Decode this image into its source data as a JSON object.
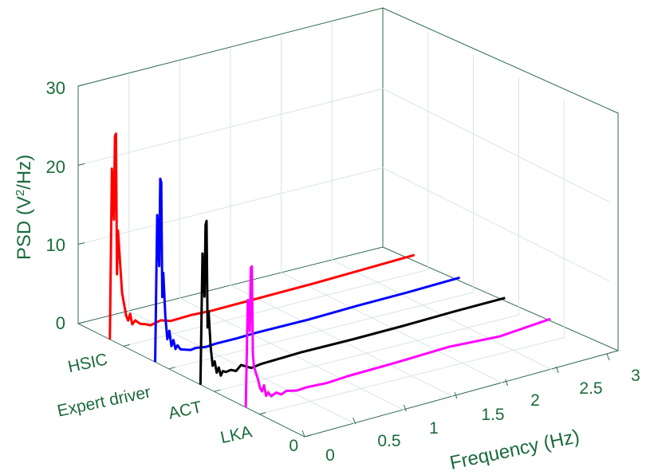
{
  "chart_data": {
    "type": "line-3d-waterfall",
    "title": "",
    "zlabel": "PSD (V²/Hz)",
    "zlabel_parts": {
      "prefix": "PSD (V",
      "sup": "2",
      "suffix": "/Hz)"
    },
    "xlabel": "Frequency (Hz)",
    "ylabel": "",
    "xlim": [
      0,
      3
    ],
    "zlim": [
      0,
      30
    ],
    "x_ticks": [
      "0",
      "0.5",
      "1",
      "1.5",
      "2",
      "2.5",
      "3"
    ],
    "y_ticks": [
      "HSIC",
      "Expert driver",
      "ACT",
      "LKA",
      "0"
    ],
    "z_ticks": [
      "0",
      "10",
      "20",
      "30"
    ],
    "series_order": [
      "HSIC",
      "Expert driver",
      "ACT",
      "LKA"
    ],
    "series": [
      {
        "name": "HSIC",
        "color": "#ff0000",
        "x": [
          0.0,
          0.02,
          0.04,
          0.05,
          0.06,
          0.07,
          0.08,
          0.1,
          0.12,
          0.14,
          0.16,
          0.18,
          0.2,
          0.22,
          0.25,
          0.3,
          0.35,
          0.4,
          0.5,
          0.6,
          0.8,
          1.0,
          1.5,
          2.0,
          2.5,
          3.0
        ],
        "values": [
          0.0,
          21.5,
          15.0,
          25.5,
          25.8,
          8.0,
          13.5,
          9.5,
          5.5,
          4.0,
          2.5,
          1.8,
          2.6,
          1.2,
          1.6,
          1.0,
          0.8,
          0.5,
          0.8,
          0.4,
          0.5,
          0.4,
          0.5,
          0.6,
          0.8,
          1.0
        ]
      },
      {
        "name": "Expert driver",
        "color": "#0000ff",
        "x": [
          0.0,
          0.02,
          0.04,
          0.05,
          0.06,
          0.07,
          0.08,
          0.1,
          0.12,
          0.14,
          0.16,
          0.18,
          0.2,
          0.22,
          0.25,
          0.3,
          0.35,
          0.4,
          0.5,
          0.6,
          0.8,
          1.0,
          1.5,
          2.0,
          2.5,
          3.0
        ],
        "values": [
          0.0,
          18.5,
          12.0,
          23.0,
          22.5,
          8.0,
          11.0,
          5.5,
          2.5,
          3.5,
          1.5,
          2.2,
          1.0,
          1.4,
          0.8,
          0.6,
          0.4,
          0.5,
          0.3,
          0.4,
          0.4,
          0.5,
          0.5,
          0.7,
          0.8,
          1.0
        ]
      },
      {
        "name": "ACT",
        "color": "#000000",
        "x": [
          0.0,
          0.02,
          0.04,
          0.05,
          0.06,
          0.07,
          0.08,
          0.1,
          0.12,
          0.14,
          0.16,
          0.18,
          0.2,
          0.22,
          0.25,
          0.3,
          0.35,
          0.4,
          0.5,
          0.6,
          0.8,
          1.0,
          1.5,
          2.0,
          2.5,
          3.0
        ],
        "values": [
          0.0,
          16.5,
          11.0,
          20.0,
          20.5,
          7.0,
          9.0,
          4.5,
          2.0,
          2.5,
          1.0,
          1.6,
          0.5,
          1.0,
          0.8,
          0.9,
          0.6,
          1.2,
          0.5,
          0.7,
          0.8,
          0.9,
          0.9,
          1.0,
          1.2,
          1.3
        ]
      },
      {
        "name": "LKA",
        "color": "#ff00ff",
        "x": [
          0.0,
          0.02,
          0.04,
          0.05,
          0.06,
          0.07,
          0.08,
          0.1,
          0.12,
          0.14,
          0.16,
          0.18,
          0.2,
          0.22,
          0.25,
          0.3,
          0.35,
          0.4,
          0.5,
          0.6,
          0.8,
          1.0,
          1.5,
          2.0,
          2.5,
          3.0
        ],
        "values": [
          0.0,
          13.5,
          9.5,
          17.5,
          17.6,
          6.5,
          5.0,
          4.0,
          3.2,
          2.0,
          1.5,
          2.2,
          0.8,
          1.2,
          0.6,
          0.9,
          0.5,
          0.8,
          0.5,
          0.6,
          0.5,
          0.7,
          0.9,
          1.2,
          0.9,
          1.5
        ]
      }
    ]
  }
}
